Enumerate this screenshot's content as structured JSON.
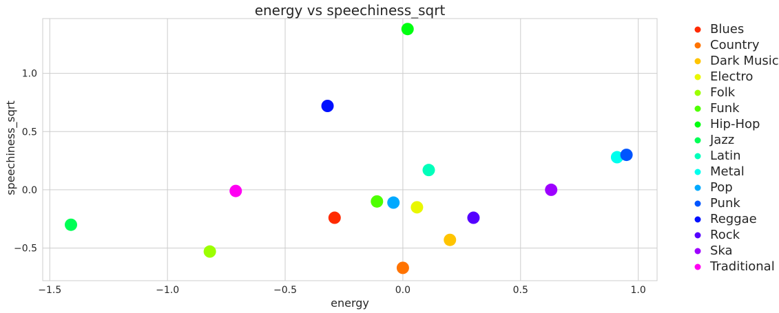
{
  "chart_data": {
    "type": "scatter",
    "title": "energy vs speechiness_sqrt",
    "xlabel": "energy",
    "ylabel": "speechiness_sqrt",
    "xlim": [
      -1.53,
      1.08
    ],
    "ylim": [
      -0.78,
      1.47
    ],
    "xticks": [
      -1.5,
      -1.0,
      -0.5,
      0.0,
      0.5,
      1.0
    ],
    "xtick_labels": [
      "−1.5",
      "−1.0",
      "−0.5",
      "0.0",
      "0.5",
      "1.0"
    ],
    "yticks": [
      -0.5,
      0.0,
      0.5,
      1.0
    ],
    "ytick_labels": [
      "−0.5",
      "0.0",
      "0.5",
      "1.0"
    ],
    "grid": true,
    "legend_position": "outside-right",
    "series": [
      {
        "name": "Blues",
        "color": "#ff2a00",
        "x": [
          -0.29
        ],
        "y": [
          -0.24
        ]
      },
      {
        "name": "Country",
        "color": "#ff7300",
        "x": [
          0.0
        ],
        "y": [
          -0.67
        ]
      },
      {
        "name": "Dark Music",
        "color": "#ffc400",
        "x": [
          0.2
        ],
        "y": [
          -0.43
        ]
      },
      {
        "name": "Electro",
        "color": "#e9f700",
        "x": [
          0.06
        ],
        "y": [
          -0.15
        ]
      },
      {
        "name": "Folk",
        "color": "#9cff00",
        "x": [
          -0.82
        ],
        "y": [
          -0.53
        ]
      },
      {
        "name": "Funk",
        "color": "#4eff00",
        "x": [
          -0.11
        ],
        "y": [
          -0.1
        ]
      },
      {
        "name": "Hip-Hop",
        "color": "#00ff10",
        "x": [
          0.02
        ],
        "y": [
          1.38
        ]
      },
      {
        "name": "Jazz",
        "color": "#00ff55",
        "x": [
          -1.41
        ],
        "y": [
          -0.3
        ]
      },
      {
        "name": "Latin",
        "color": "#00ffbb",
        "x": [
          0.11
        ],
        "y": [
          0.17
        ]
      },
      {
        "name": "Metal",
        "color": "#00ffee",
        "x": [
          0.91
        ],
        "y": [
          0.28
        ]
      },
      {
        "name": "Pop",
        "color": "#00a9ff",
        "x": [
          -0.04
        ],
        "y": [
          -0.11
        ]
      },
      {
        "name": "Punk",
        "color": "#0055ff",
        "x": [
          0.95
        ],
        "y": [
          0.3
        ]
      },
      {
        "name": "Reggae",
        "color": "#0010ff",
        "x": [
          -0.32
        ],
        "y": [
          0.72
        ]
      },
      {
        "name": "Rock",
        "color": "#5500ff",
        "x": [
          0.3
        ],
        "y": [
          -0.24
        ]
      },
      {
        "name": "Ska",
        "color": "#9d00ff",
        "x": [
          0.63
        ],
        "y": [
          0.0
        ]
      },
      {
        "name": "Traditional",
        "color": "#ff00f2",
        "x": [
          -0.71
        ],
        "y": [
          -0.01
        ]
      }
    ]
  }
}
